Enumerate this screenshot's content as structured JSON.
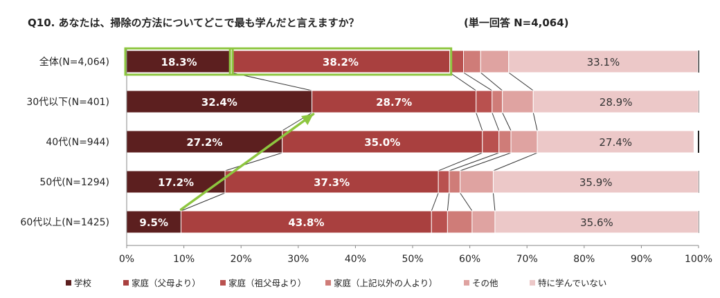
{
  "chart_data": {
    "type": "bar",
    "stacked": true,
    "orientation": "horizontal",
    "title": "Q10.  あなたは、掃除の方法についてどこで最も学んだと言えますか？",
    "subtitle": "(単一回答 N=4,064)",
    "categories": [
      "全体(N=4,064)",
      "30代以下(N=401)",
      "40代(N=944)",
      "50代(N=1294)",
      "60代以上(N=1425)"
    ],
    "series": [
      {
        "name": "学校",
        "color": "#5c1f1f",
        "values": [
          18.3,
          32.4,
          27.2,
          17.2,
          9.5
        ]
      },
      {
        "name": "家庭（父母より）",
        "color": "#a9403f",
        "values": [
          38.2,
          28.7,
          35.0,
          37.3,
          43.8
        ]
      },
      {
        "name": "家庭（祖父母より）",
        "color": "#b9514f",
        "values": [
          2.4,
          2.8,
          2.9,
          1.9,
          2.8
        ]
      },
      {
        "name": "家庭（上記以外の人より）",
        "color": "#cf7c78",
        "values": [
          3.0,
          1.8,
          2.1,
          1.9,
          4.3
        ]
      },
      {
        "name": "その他",
        "color": "#dfa3a1",
        "values": [
          4.9,
          5.4,
          4.6,
          5.8,
          4.0
        ]
      },
      {
        "name": "特に学んでいない",
        "color": "#ecc8c8",
        "values": [
          33.1,
          28.9,
          27.4,
          35.9,
          35.6
        ]
      }
    ],
    "data_labels": [
      [
        "18.3%",
        "38.2%",
        "",
        "",
        "",
        "33.1%"
      ],
      [
        "32.4%",
        "28.7%",
        "",
        "",
        "",
        "28.9%"
      ],
      [
        "27.2%",
        "35.0%",
        "",
        "",
        "",
        "27.4%"
      ],
      [
        "17.2%",
        "37.3%",
        "",
        "",
        "",
        "35.9%"
      ],
      [
        "9.5%",
        "43.8%",
        "",
        "",
        "",
        "35.6%"
      ]
    ],
    "x_ticks": [
      "0%",
      "10%",
      "20%",
      "30%",
      "40%",
      "50%",
      "60%",
      "70%",
      "80%",
      "90%",
      "100%"
    ],
    "xlim": [
      0,
      100
    ],
    "legend_position": "bottom",
    "highlight_color": "#8dc63f",
    "highlighted_segments": [
      [
        0,
        0
      ],
      [
        0,
        1
      ]
    ],
    "trend_arrow": {
      "from": [
        9.5,
        4
      ],
      "to": [
        32.4,
        1
      ]
    }
  }
}
